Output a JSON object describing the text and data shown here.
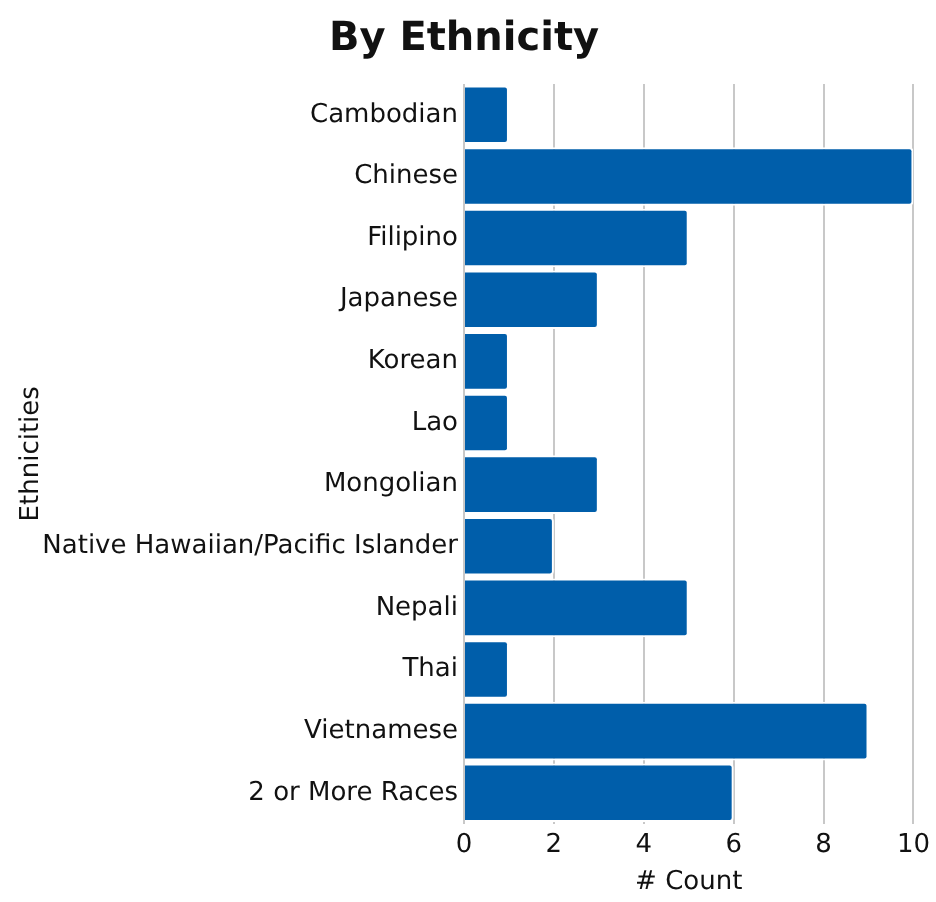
{
  "chart_data": {
    "type": "bar",
    "orientation": "horizontal",
    "title": "By Ethnicity",
    "xlabel": "# Count",
    "ylabel": "Ethnicities",
    "categories": [
      "Cambodian",
      "Chinese",
      "Filipino",
      "Japanese",
      "Korean",
      "Lao",
      "Mongolian",
      "Native Hawaiian/Pacific Islander",
      "Nepali",
      "Thai",
      "Vietnamese",
      "2 or More Races"
    ],
    "values": [
      1,
      10,
      5,
      3,
      1,
      1,
      3,
      2,
      5,
      1,
      9,
      6
    ],
    "color": "#005eaa",
    "xlim": [
      0,
      10
    ],
    "xticks": [
      0,
      2,
      4,
      6,
      8,
      10
    ],
    "grid": "x"
  }
}
